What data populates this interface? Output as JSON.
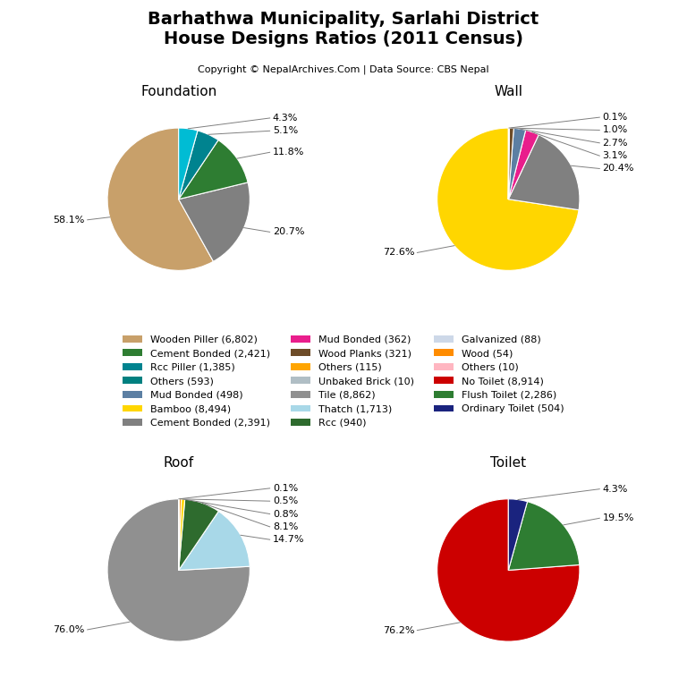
{
  "title": "Barhathwa Municipality, Sarlahi District\nHouse Designs Ratios (2011 Census)",
  "subtitle": "Copyright © NepalArchives.Com | Data Source: CBS Nepal",
  "legend": "center",
  "legend_entries": [
    {
      "name": "Wooden Piller (6,802)",
      "color": "#c8a06a"
    },
    {
      "name": "Cement Bonded (2,421)",
      "color": "#2e7d32"
    },
    {
      "name": "Rcc Piller (1,385)",
      "color": "#00838f"
    },
    {
      "name": "Others (593)",
      "color": "#008080"
    },
    {
      "name": "Mud Bonded (498)",
      "color": "#5c7fa3"
    },
    {
      "name": "Bamboo (8,494)",
      "color": "#ffd600"
    },
    {
      "name": "Cement Bonded (2,391)",
      "color": "#808080"
    },
    {
      "name": "Mud Bonded (362)",
      "color": "#e91e8c"
    },
    {
      "name": "Wood Planks (321)",
      "color": "#6d4c28"
    },
    {
      "name": "Others (115)",
      "color": "#ffa500"
    },
    {
      "name": "Unbaked Brick (10)",
      "color": "#b0bec5"
    },
    {
      "name": "Tile (8,862)",
      "color": "#909090"
    },
    {
      "name": "Thatch (1,713)",
      "color": "#a8d8e8"
    },
    {
      "name": "Rcc (940)",
      "color": "#2e6b2e"
    },
    {
      "name": "Galvanized (88)",
      "color": "#cdd8e8"
    },
    {
      "name": "Wood (54)",
      "color": "#ff8c00"
    },
    {
      "name": "Others (10)",
      "color": "#ffb6c1"
    },
    {
      "name": "No Toilet (8,914)",
      "color": "#cc0000"
    },
    {
      "name": "Flush Toilet (2,286)",
      "color": "#2e7d32"
    },
    {
      "name": "Ordinary Toilet (504)",
      "color": "#1a237e"
    }
  ],
  "chart_data": [
    {
      "type": "pie",
      "title": "Foundation",
      "values": [
        58.1,
        20.7,
        11.8,
        5.1,
        4.3
      ],
      "value_labels": [
        "58.1%",
        "20.7%",
        "11.8%",
        "5.1%",
        "4.3%"
      ],
      "colors": [
        "#c8a06a",
        "#808080",
        "#2e7d32",
        "#00838f",
        "#00bcd4"
      ]
    },
    {
      "type": "pie",
      "title": "Wall",
      "values": [
        72.6,
        20.4,
        3.1,
        2.7,
        1.0,
        0.1,
        0.1
      ],
      "value_labels": [
        "72.6%",
        "20.4%",
        "3.1%",
        "2.7%",
        "1.0%",
        "0.1%",
        null
      ],
      "colors": [
        "#ffd600",
        "#808080",
        "#e91e8c",
        "#5c7fa3",
        "#6d4c28",
        "#b0bec5",
        "#37474f"
      ]
    },
    {
      "type": "pie",
      "title": "Roof",
      "values": [
        76.0,
        14.7,
        8.1,
        0.8,
        0.5,
        0.1
      ],
      "value_labels": [
        "76.0%",
        "14.7%",
        "8.1%",
        "0.8%",
        "0.5%",
        "0.1%"
      ],
      "colors": [
        "#909090",
        "#a8d8e8",
        "#2e6b2e",
        "#ffd600",
        "#ff8c00",
        "#f5f5dc"
      ]
    },
    {
      "type": "pie",
      "title": "Toilet",
      "values": [
        76.2,
        19.5,
        4.3
      ],
      "value_labels": [
        "76.2%",
        "19.5%",
        "4.3%"
      ],
      "colors": [
        "#cc0000",
        "#2e7d32",
        "#1a237e"
      ]
    }
  ]
}
